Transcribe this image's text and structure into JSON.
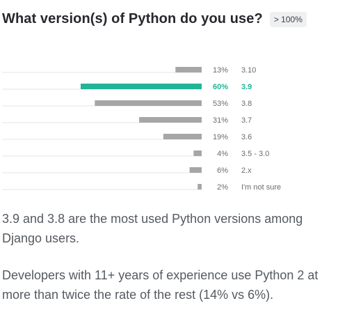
{
  "header": {
    "title": "What version(s) of Python do you use?",
    "badge": "> 100%"
  },
  "chart_data": {
    "type": "bar",
    "orientation": "horizontal",
    "categories": [
      "3.10",
      "3.9",
      "3.8",
      "3.7",
      "3.6",
      "3.5 - 3.0",
      "2.x",
      "I'm not sure"
    ],
    "values": [
      13,
      60,
      53,
      31,
      19,
      4,
      6,
      2
    ],
    "value_labels": [
      "13%",
      "60%",
      "53%",
      "31%",
      "19%",
      "4%",
      "6%",
      "2%"
    ],
    "highlight_index": 1,
    "colors": {
      "bar": "#a6a6a6",
      "highlight": "#21b496",
      "baseline": "#e4e4e4",
      "label": "#6b6b6b"
    },
    "grid": false,
    "legend": "none"
  },
  "insights": {
    "first": "3.9 and 3.8 are the most used Python versions among Django users.",
    "second": "Developers with 11+ years of experience use Python 2 at more than twice the rate of the rest (14% vs 6%)."
  }
}
